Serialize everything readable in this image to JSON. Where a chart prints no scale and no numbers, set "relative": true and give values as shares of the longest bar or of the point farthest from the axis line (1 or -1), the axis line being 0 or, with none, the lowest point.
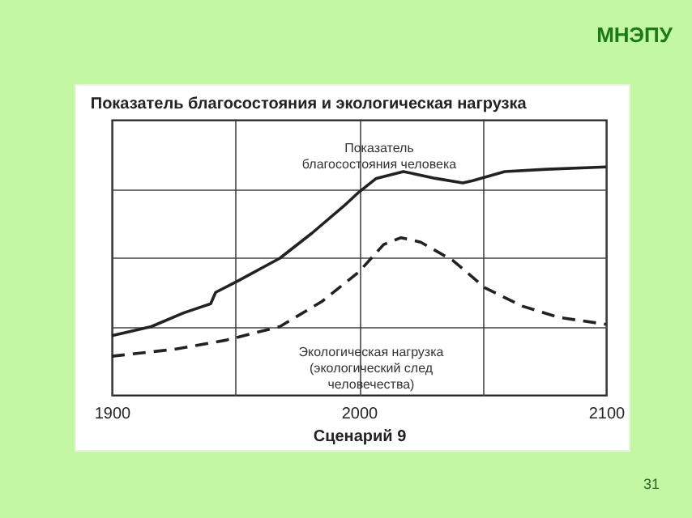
{
  "chart_data": {
    "type": "line",
    "title": "Показатель благосостояния и экологическая нагрузка",
    "xlabel": "Сценарий 9",
    "relative": true,
    "grid": true,
    "legend": false,
    "marker": "none",
    "annotations": [
      "МНЭПУ",
      "31"
    ],
    "xlim": [
      1900,
      2100
    ],
    "xticks": [
      1900,
      {
        "value": 1950,
        "label": null
      },
      2000,
      {
        "value": 2050,
        "label": null
      },
      2100
    ],
    "series": [
      {
        "name": "Показатель\nблагосостояния человека",
        "color": "#222222",
        "line_style": "solid",
        "x": [
          1900,
          1916,
          1929,
          1940,
          1942,
          1951,
          1968,
          1981,
          1994,
          2000,
          2007,
          2018,
          2031,
          2042,
          2046,
          2059,
          2076,
          2100
        ],
        "values": [
          0.26,
          0.3,
          0.36,
          0.4,
          0.45,
          0.5,
          0.6,
          0.71,
          0.83,
          0.89,
          0.95,
          0.98,
          0.95,
          0.93,
          0.94,
          0.98,
          0.99,
          1.0
        ]
      },
      {
        "name": "Экологическая нагрузка\n(экологический след\nчеловечества)",
        "color": "#222222",
        "line_style": "dashed",
        "x": [
          1900,
          1925,
          1946,
          1968,
          1985,
          2000,
          2010,
          2017,
          2025,
          2038,
          2051,
          2066,
          2081,
          2100
        ],
        "values": [
          0.17,
          0.2,
          0.24,
          0.3,
          0.41,
          0.54,
          0.66,
          0.69,
          0.67,
          0.59,
          0.47,
          0.39,
          0.34,
          0.31
        ]
      }
    ]
  }
}
